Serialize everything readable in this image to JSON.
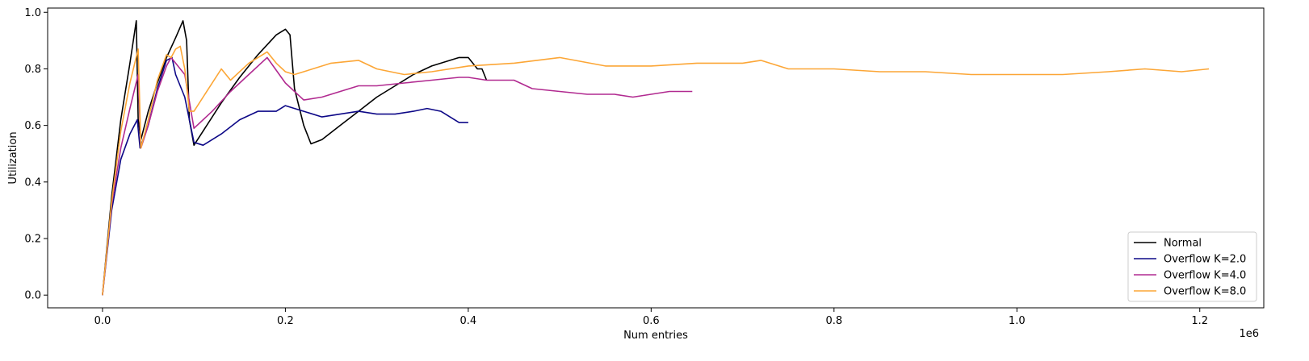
{
  "chart_data": {
    "type": "line",
    "title": "",
    "xlabel": "Num entries",
    "ylabel": "Utilization",
    "x_offset_label": "1e6",
    "xlim": [
      -0.06,
      1.27
    ],
    "ylim": [
      -0.045,
      1.015
    ],
    "xticks": [
      0.0,
      0.2,
      0.4,
      0.6,
      0.8,
      1.0,
      1.2
    ],
    "xtick_labels": [
      "0.0",
      "0.2",
      "0.4",
      "0.6",
      "0.8",
      "1.0",
      "1.2"
    ],
    "yticks": [
      0.0,
      0.2,
      0.4,
      0.6,
      0.8,
      1.0
    ],
    "ytick_labels": [
      "0.0",
      "0.2",
      "0.4",
      "0.6",
      "0.8",
      "1.0"
    ],
    "grid": false,
    "legend_position": "lower-right",
    "series": [
      {
        "name": "Normal",
        "color": "#000000",
        "x": [
          0.0,
          0.01,
          0.02,
          0.03,
          0.037,
          0.039,
          0.042,
          0.05,
          0.06,
          0.07,
          0.08,
          0.088,
          0.092,
          0.095,
          0.1,
          0.11,
          0.13,
          0.15,
          0.17,
          0.19,
          0.2,
          0.205,
          0.21,
          0.22,
          0.228,
          0.24,
          0.26,
          0.28,
          0.3,
          0.32,
          0.34,
          0.36,
          0.38,
          0.39,
          0.4,
          0.405,
          0.41,
          0.415,
          0.42
        ],
        "y": [
          0.0,
          0.35,
          0.62,
          0.82,
          0.97,
          0.62,
          0.55,
          0.65,
          0.75,
          0.84,
          0.91,
          0.97,
          0.9,
          0.62,
          0.53,
          0.58,
          0.68,
          0.77,
          0.85,
          0.92,
          0.94,
          0.92,
          0.73,
          0.6,
          0.535,
          0.55,
          0.6,
          0.65,
          0.7,
          0.74,
          0.78,
          0.81,
          0.83,
          0.84,
          0.84,
          0.82,
          0.8,
          0.8,
          0.76
        ]
      },
      {
        "name": "Overflow K=2.0",
        "color": "#0d0887",
        "x": [
          0.0,
          0.01,
          0.02,
          0.03,
          0.038,
          0.041,
          0.05,
          0.06,
          0.07,
          0.076,
          0.08,
          0.09,
          0.1,
          0.11,
          0.13,
          0.15,
          0.17,
          0.19,
          0.2,
          0.22,
          0.24,
          0.26,
          0.28,
          0.3,
          0.32,
          0.34,
          0.355,
          0.37,
          0.38,
          0.39,
          0.4
        ],
        "y": [
          0.0,
          0.3,
          0.48,
          0.57,
          0.62,
          0.52,
          0.6,
          0.73,
          0.83,
          0.84,
          0.78,
          0.7,
          0.54,
          0.53,
          0.57,
          0.62,
          0.65,
          0.65,
          0.67,
          0.65,
          0.63,
          0.64,
          0.65,
          0.64,
          0.64,
          0.65,
          0.66,
          0.65,
          0.63,
          0.61,
          0.61
        ]
      },
      {
        "name": "Overflow K=4.0",
        "color": "#b12a90",
        "x": [
          0.0,
          0.01,
          0.02,
          0.03,
          0.039,
          0.042,
          0.05,
          0.06,
          0.07,
          0.075,
          0.08,
          0.09,
          0.1,
          0.12,
          0.14,
          0.16,
          0.18,
          0.2,
          0.22,
          0.24,
          0.26,
          0.28,
          0.3,
          0.33,
          0.36,
          0.39,
          0.4,
          0.42,
          0.45,
          0.47,
          0.5,
          0.53,
          0.56,
          0.58,
          0.6,
          0.62,
          0.645
        ],
        "y": [
          0.0,
          0.32,
          0.52,
          0.66,
          0.78,
          0.52,
          0.6,
          0.72,
          0.81,
          0.84,
          0.82,
          0.78,
          0.59,
          0.65,
          0.72,
          0.78,
          0.84,
          0.75,
          0.69,
          0.7,
          0.72,
          0.74,
          0.74,
          0.75,
          0.76,
          0.77,
          0.77,
          0.76,
          0.76,
          0.73,
          0.72,
          0.71,
          0.71,
          0.7,
          0.71,
          0.72,
          0.72
        ]
      },
      {
        "name": "Overflow K=8.0",
        "color": "#fca636",
        "x": [
          0.0,
          0.01,
          0.02,
          0.03,
          0.039,
          0.042,
          0.05,
          0.06,
          0.07,
          0.075,
          0.08,
          0.085,
          0.09,
          0.095,
          0.1,
          0.11,
          0.13,
          0.14,
          0.16,
          0.18,
          0.19,
          0.2,
          0.21,
          0.22,
          0.25,
          0.28,
          0.3,
          0.33,
          0.36,
          0.4,
          0.45,
          0.5,
          0.55,
          0.6,
          0.65,
          0.7,
          0.72,
          0.75,
          0.8,
          0.85,
          0.9,
          0.95,
          0.98,
          1.0,
          1.05,
          1.1,
          1.14,
          1.18,
          1.21
        ],
        "y": [
          0.0,
          0.33,
          0.58,
          0.75,
          0.87,
          0.52,
          0.62,
          0.76,
          0.85,
          0.84,
          0.87,
          0.88,
          0.8,
          0.65,
          0.65,
          0.7,
          0.8,
          0.76,
          0.82,
          0.86,
          0.82,
          0.79,
          0.78,
          0.79,
          0.82,
          0.83,
          0.8,
          0.78,
          0.79,
          0.81,
          0.82,
          0.84,
          0.81,
          0.81,
          0.82,
          0.82,
          0.83,
          0.8,
          0.8,
          0.79,
          0.79,
          0.78,
          0.78,
          0.78,
          0.78,
          0.79,
          0.8,
          0.79,
          0.8
        ]
      }
    ]
  }
}
